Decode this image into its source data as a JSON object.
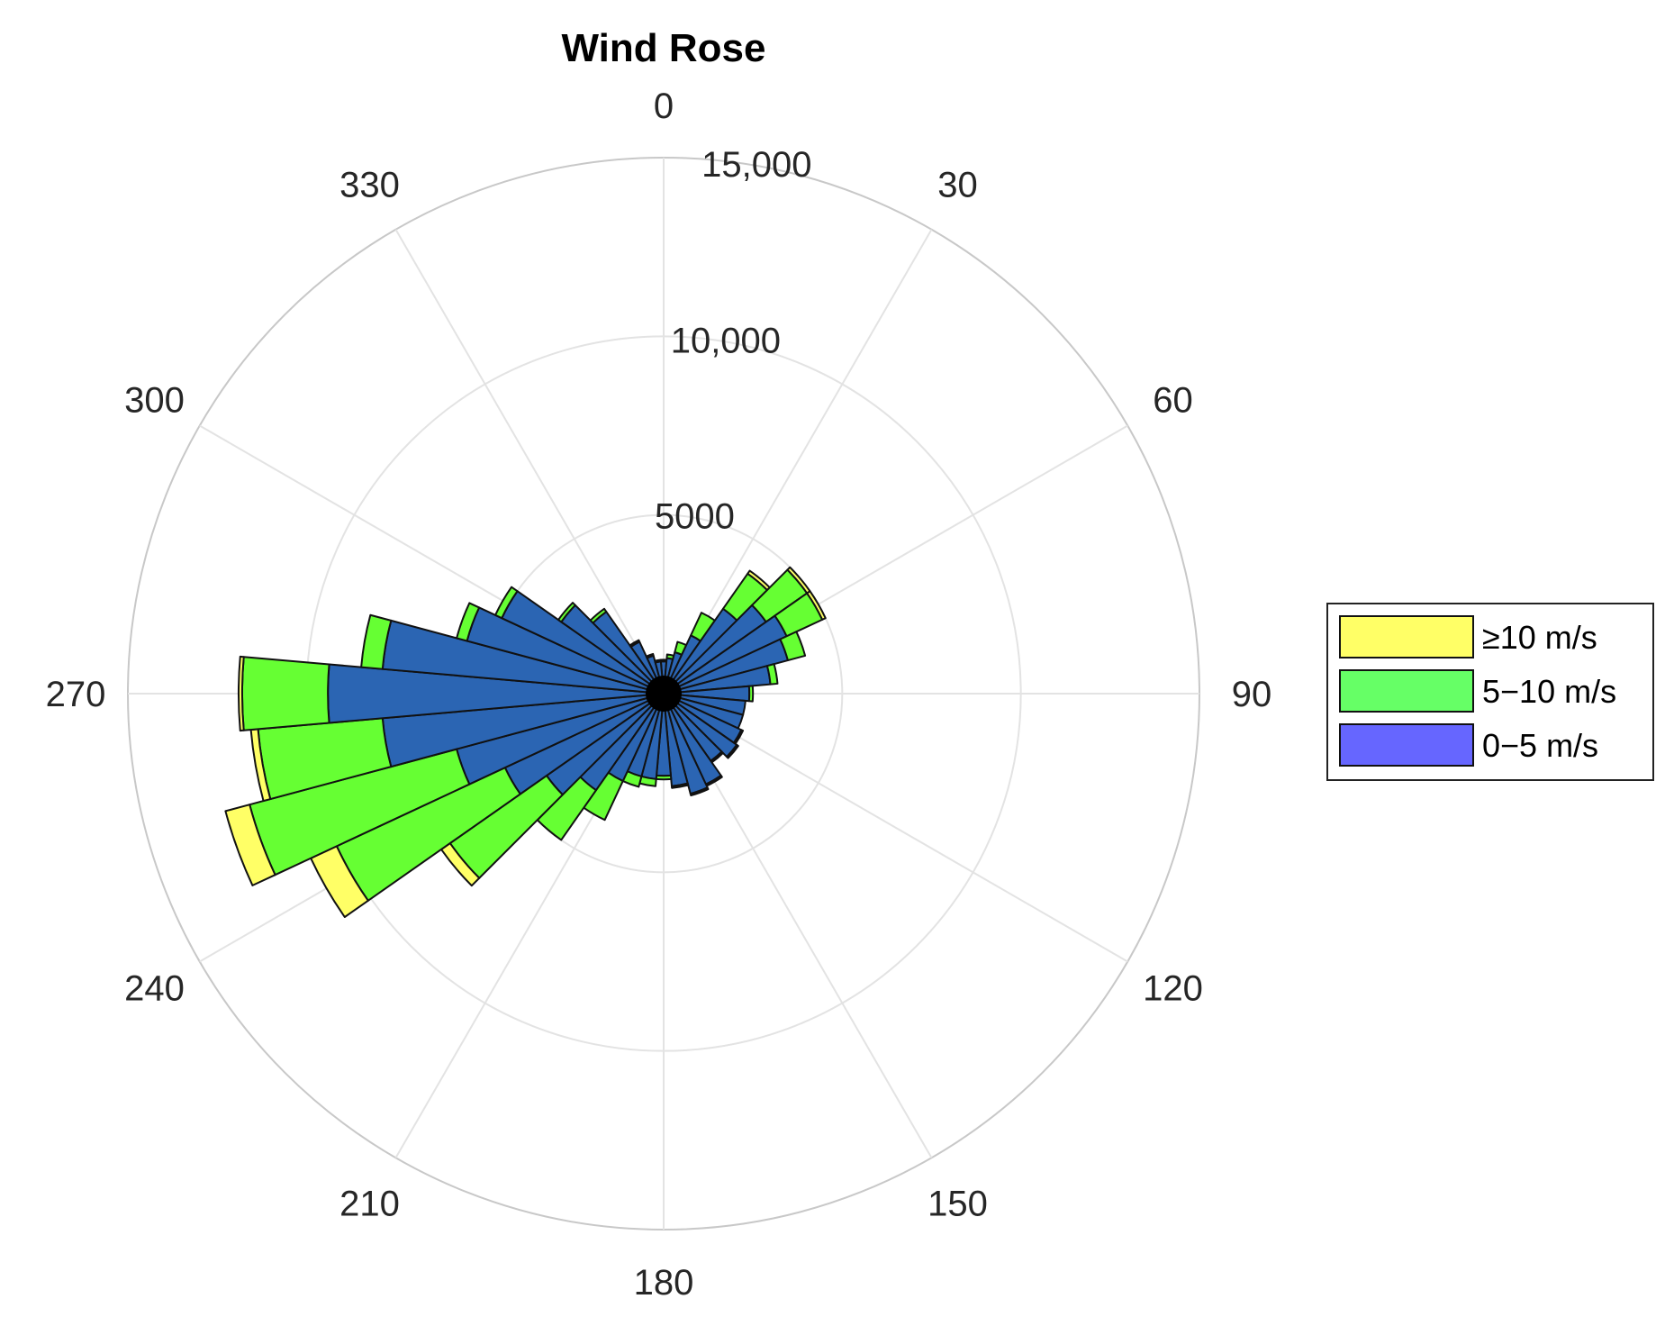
{
  "chart_data": {
    "type": "wind-rose",
    "title": "Wind Rose",
    "direction_bin_width_deg": 10,
    "theta_ticks": [
      0,
      30,
      60,
      90,
      120,
      150,
      180,
      210,
      240,
      270,
      300,
      330
    ],
    "r_ticks": [
      5000,
      10000,
      15000
    ],
    "r_tick_labels": [
      "5000",
      "10,000",
      "15,000"
    ],
    "r_max": 15000,
    "grid": true,
    "legend_position": "right",
    "series": [
      {
        "name": "0-5 m/s",
        "label": "0−5 m/s",
        "color": "#6666ff",
        "fill": "#2b65b3",
        "directions": [
          0,
          10,
          20,
          30,
          40,
          50,
          60,
          70,
          80,
          90,
          100,
          110,
          120,
          130,
          140,
          150,
          160,
          170,
          180,
          190,
          200,
          210,
          220,
          230,
          240,
          250,
          260,
          270,
          280,
          290,
          300,
          310,
          320,
          330,
          340,
          350
        ],
        "values": [
          900,
          1000,
          1200,
          1800,
          2900,
          3500,
          3800,
          3600,
          3000,
          2400,
          2300,
          2300,
          2400,
          2500,
          2300,
          2800,
          2900,
          2600,
          2300,
          2400,
          2400,
          2700,
          3300,
          4000,
          4900,
          6000,
          7900,
          9400,
          7900,
          5700,
          5000,
          3500,
          2800,
          1600,
          1100,
          900
        ]
      },
      {
        "name": "5-10 m/s",
        "label": "5−10 m/s",
        "color": "#66ff66",
        "fill": "#66ff33",
        "directions": [
          0,
          10,
          20,
          30,
          40,
          50,
          60,
          70,
          80,
          90,
          100,
          110,
          120,
          130,
          140,
          150,
          160,
          170,
          180,
          190,
          200,
          210,
          220,
          230,
          240,
          250,
          260,
          270,
          280,
          290,
          300,
          310,
          320,
          330,
          340,
          350
        ],
        "values": [
          50,
          100,
          300,
          700,
          1200,
          1400,
          1100,
          500,
          200,
          100,
          0,
          0,
          50,
          50,
          50,
          50,
          50,
          50,
          100,
          200,
          300,
          1200,
          1700,
          3300,
          5200,
          6000,
          3500,
          2400,
          600,
          300,
          200,
          100,
          100,
          50,
          50,
          50
        ]
      },
      {
        "name": "≥10 m/s",
        "label": "≥10 m/s",
        "color": "#ffff66",
        "fill": "#ffff66",
        "directions": [
          0,
          10,
          20,
          30,
          40,
          50,
          60,
          70,
          80,
          90,
          100,
          110,
          120,
          130,
          140,
          150,
          160,
          170,
          180,
          190,
          200,
          210,
          220,
          230,
          240,
          250,
          260,
          270,
          280,
          290,
          300,
          310,
          320,
          330,
          340,
          350
        ],
        "values": [
          0,
          0,
          0,
          0,
          100,
          100,
          100,
          0,
          0,
          0,
          0,
          0,
          0,
          0,
          0,
          0,
          0,
          0,
          0,
          0,
          0,
          0,
          0,
          300,
          800,
          700,
          200,
          100,
          0,
          0,
          0,
          0,
          0,
          0,
          0,
          0
        ]
      }
    ],
    "legend_order": [
      "≥10 m/s",
      "5−10 m/s",
      "0−5 m/s"
    ]
  }
}
